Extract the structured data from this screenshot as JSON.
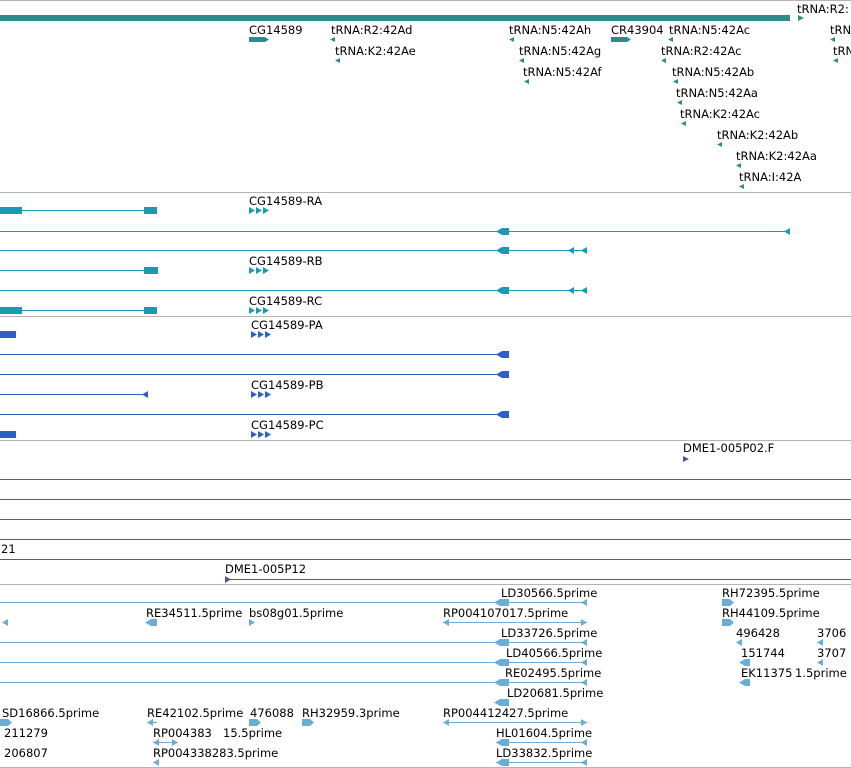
{
  "colors": {
    "background": "#ffffff",
    "track_border": "#b4b4b4",
    "gene": "#2e8b8b",
    "transcript": "#1a9bb3",
    "protein": "#2d5fc4",
    "clone": "#6a4a9a",
    "est": "#6aaed6",
    "label": "#000000"
  },
  "tracks": {
    "genes": {
      "labels": [
        {
          "name": "gene-label-trna-r2-right-edge",
          "text": "tRNA:R2:"
        },
        {
          "name": "gene-label-cg14589",
          "text": "CG14589"
        },
        {
          "name": "gene-label-trna-r2-42ad",
          "text": "tRNA:R2:42Ad"
        },
        {
          "name": "gene-label-trna-n5-42ah",
          "text": "tRNA:N5:42Ah"
        },
        {
          "name": "gene-label-cr43904",
          "text": "CR43904"
        },
        {
          "name": "gene-label-trna-n5-42ac",
          "text": "tRNA:N5:42Ac"
        },
        {
          "name": "gene-label-trna-n-edge-1",
          "text": "tRNA"
        },
        {
          "name": "gene-label-trna-k2-42ae",
          "text": "tRNA:K2:42Ae"
        },
        {
          "name": "gene-label-trna-n5-42ag",
          "text": "tRNA:N5:42Ag"
        },
        {
          "name": "gene-label-trna-r2-42ac",
          "text": "tRNA:R2:42Ac"
        },
        {
          "name": "gene-label-trna-n-edge-2",
          "text": "tRNA"
        },
        {
          "name": "gene-label-trna-n5-42af",
          "text": "tRNA:N5:42Af"
        },
        {
          "name": "gene-label-trna-n5-42ab",
          "text": "tRNA:N5:42Ab"
        },
        {
          "name": "gene-label-trna-n5-42aa",
          "text": "tRNA:N5:42Aa"
        },
        {
          "name": "gene-label-trna-k2-42ac",
          "text": "tRNA:K2:42Ac"
        },
        {
          "name": "gene-label-trna-k2-42ab",
          "text": "tRNA:K2:42Ab"
        },
        {
          "name": "gene-label-trna-k2-42aa",
          "text": "tRNA:K2:42Aa"
        },
        {
          "name": "gene-label-trna-i-42a",
          "text": "tRNA:I:42A"
        }
      ]
    },
    "transcripts": {
      "labels": [
        {
          "name": "transcript-label-cg14589-ra",
          "text": "CG14589-RA"
        },
        {
          "name": "transcript-label-cg14589-rb",
          "text": "CG14589-RB"
        },
        {
          "name": "transcript-label-cg14589-rc",
          "text": "CG14589-RC"
        }
      ]
    },
    "proteins": {
      "labels": [
        {
          "name": "protein-label-cg14589-pa",
          "text": "CG14589-PA"
        },
        {
          "name": "protein-label-cg14589-pb",
          "text": "CG14589-PB"
        },
        {
          "name": "protein-label-cg14589-pc",
          "text": "CG14589-PC"
        }
      ]
    },
    "clones": {
      "labels": [
        {
          "name": "clone-label-dme1-005p02-f",
          "text": "DME1-005P02.F"
        },
        {
          "name": "clone-label-21",
          "text": "21"
        },
        {
          "name": "clone-label-dme1-005p12",
          "text": "DME1-005P12"
        }
      ]
    },
    "ests": {
      "labels": [
        {
          "name": "est-label-ld30566",
          "text": "LD30566.5prime"
        },
        {
          "name": "est-label-rh72395",
          "text": "RH72395.5prime"
        },
        {
          "name": "est-label-re34511",
          "text": "RE34511.5prime"
        },
        {
          "name": "est-label-bs08g01",
          "text": "bs08g01.5prime"
        },
        {
          "name": "est-label-rp004107017",
          "text": "RP004107017.5prime"
        },
        {
          "name": "est-label-rh44109",
          "text": "RH44109.5prime"
        },
        {
          "name": "est-label-ld33726",
          "text": "LD33726.5prime"
        },
        {
          "name": "est-label-496428",
          "text": "496428"
        },
        {
          "name": "est-label-3706-edge",
          "text": "3706"
        },
        {
          "name": "est-label-ld40566",
          "text": "LD40566.5prime"
        },
        {
          "name": "est-label-151744",
          "text": "151744"
        },
        {
          "name": "est-label-3707-edge",
          "text": "3707"
        },
        {
          "name": "est-label-re02495",
          "text": "RE02495.5prime"
        },
        {
          "name": "est-label-ek11375",
          "text": "EK11375"
        },
        {
          "name": "est-label-1-5prime-edge",
          "text": "1.5prime"
        },
        {
          "name": "est-label-ld20681",
          "text": "LD20681.5prime"
        },
        {
          "name": "est-label-sd16866",
          "text": "SD16866.5prime"
        },
        {
          "name": "est-label-re42102",
          "text": "RE42102.5prime"
        },
        {
          "name": "est-label-476088",
          "text": "476088"
        },
        {
          "name": "est-label-rh32959",
          "text": "RH32959.3prime"
        },
        {
          "name": "est-label-rp004412427",
          "text": "RP004412427.5prime"
        },
        {
          "name": "est-label-211279",
          "text": "211279"
        },
        {
          "name": "est-label-rp004383",
          "text": "RP004383"
        },
        {
          "name": "est-label-15-5prime",
          "text": "15.5prime"
        },
        {
          "name": "est-label-hl01604",
          "text": "HL01604.5prime"
        },
        {
          "name": "est-label-206807",
          "text": "206807"
        },
        {
          "name": "est-label-rp004338283",
          "text": "RP004338283.5prime"
        },
        {
          "name": "est-label-ld33832",
          "text": "LD33832.5prime"
        }
      ]
    }
  }
}
